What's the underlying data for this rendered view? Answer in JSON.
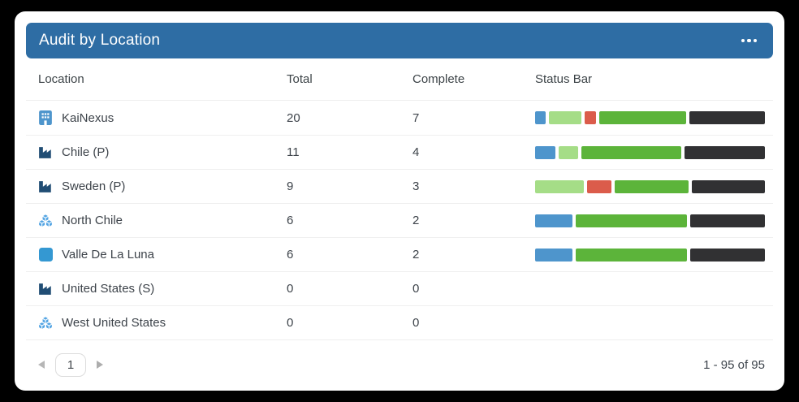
{
  "header": {
    "title": "Audit by Location",
    "menu_icon": "ellipsis-menu"
  },
  "table": {
    "columns": [
      "Location",
      "Total",
      "Complete",
      "Status Bar"
    ],
    "rows": [
      {
        "icon": "building",
        "name": "KaiNexus",
        "total": "20",
        "complete": "7",
        "bar": {
          "total": 20,
          "segments": [
            {
              "color": "blue",
              "value": 1
            },
            {
              "color": "light_green",
              "value": 3
            },
            {
              "color": "red",
              "value": 1
            },
            {
              "color": "green",
              "value": 8
            },
            {
              "color": "dark",
              "value": 7
            }
          ]
        }
      },
      {
        "icon": "factory",
        "name": "Chile (P)",
        "total": "11",
        "complete": "4",
        "bar": {
          "total": 11,
          "segments": [
            {
              "color": "blue",
              "value": 1
            },
            {
              "color": "light_green",
              "value": 1
            },
            {
              "color": "green",
              "value": 5
            },
            {
              "color": "dark",
              "value": 4
            }
          ]
        }
      },
      {
        "icon": "factory",
        "name": "Sweden (P)",
        "total": "9",
        "complete": "3",
        "bar": {
          "total": 9,
          "segments": [
            {
              "color": "light_green",
              "value": 2
            },
            {
              "color": "red",
              "value": 1
            },
            {
              "color": "green",
              "value": 3
            },
            {
              "color": "dark",
              "value": 3
            }
          ]
        }
      },
      {
        "icon": "cubes",
        "name": "North Chile",
        "total": "6",
        "complete": "2",
        "bar": {
          "total": 6,
          "segments": [
            {
              "color": "blue",
              "value": 1
            },
            {
              "color": "green",
              "value": 3
            },
            {
              "color": "dark",
              "value": 2
            }
          ]
        }
      },
      {
        "icon": "square",
        "name": "Valle De La Luna",
        "total": "6",
        "complete": "2",
        "bar": {
          "total": 6,
          "segments": [
            {
              "color": "blue",
              "value": 1
            },
            {
              "color": "green",
              "value": 3
            },
            {
              "color": "dark",
              "value": 2
            }
          ]
        }
      },
      {
        "icon": "factory",
        "name": "United States (S)",
        "total": "0",
        "complete": "0",
        "bar": {
          "total": 0,
          "segments": []
        }
      },
      {
        "icon": "cubes",
        "name": "West United States",
        "total": "0",
        "complete": "0",
        "bar": {
          "total": 0,
          "segments": []
        }
      }
    ]
  },
  "colors": {
    "header_bg": "#2e6da4",
    "bar": {
      "blue": "#4e95cc",
      "light_green": "#a5dd87",
      "red": "#db5c4b",
      "green": "#5cb43a",
      "dark": "#313133"
    },
    "icons": {
      "building": "#4e95cc",
      "factory": "#204d74",
      "cubes": "#54a5e3",
      "square": "#3498d2"
    }
  },
  "pagination": {
    "current_page": "1",
    "range_label": "1 - 95 of 95"
  }
}
